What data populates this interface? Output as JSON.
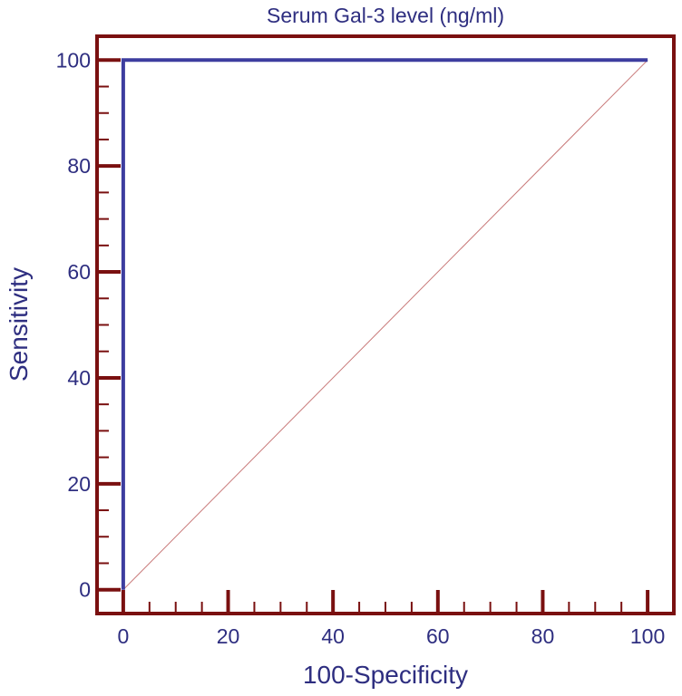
{
  "chart_data": {
    "type": "line",
    "title": "Serum Gal-3 level (ng/ml)",
    "xlabel": "100-Specificity",
    "ylabel": "Sensitivity",
    "xlim": [
      -5,
      105
    ],
    "ylim": [
      -4.5,
      104.5
    ],
    "x_ticks": [
      0,
      20,
      40,
      60,
      80,
      100
    ],
    "y_ticks": [
      0,
      20,
      40,
      60,
      80,
      100
    ],
    "x_tick_labels": [
      "0",
      "20",
      "40",
      "60",
      "80",
      "100"
    ],
    "y_tick_labels": [
      "0",
      "20",
      "40",
      "60",
      "80",
      "100"
    ],
    "x_minor_step": 5,
    "y_minor_step": 5,
    "grid": false,
    "series": [
      {
        "points": [
          [
            0,
            0
          ],
          [
            0,
            100
          ],
          [
            100,
            100
          ]
        ],
        "color": "#3d3d9f"
      },
      {
        "points": [
          [
            0,
            0
          ],
          [
            100,
            100
          ]
        ],
        "color": "#c87878",
        "style": "reference-diagonal"
      }
    ],
    "colors": {
      "frame": "#7a1010",
      "text": "#2e2e80"
    }
  }
}
